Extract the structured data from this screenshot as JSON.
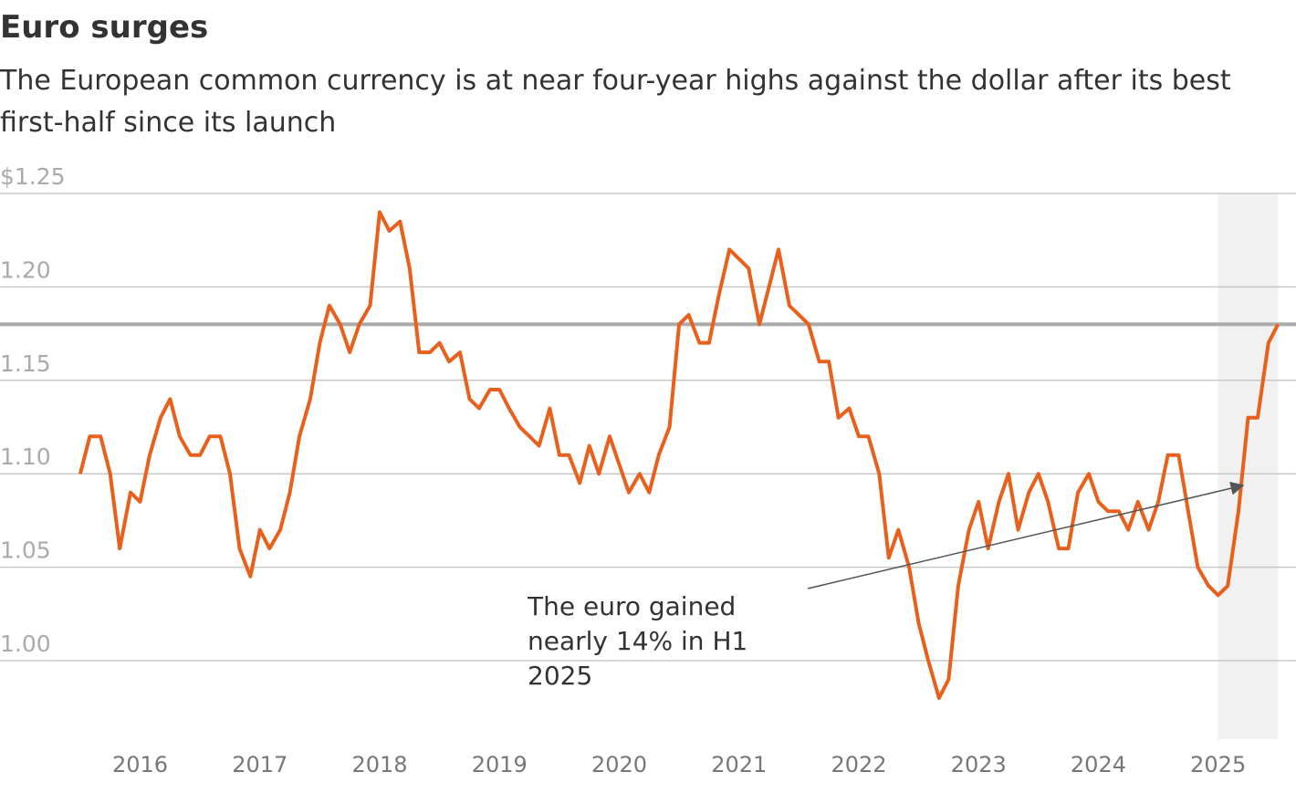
{
  "chart_data": {
    "type": "line",
    "title": "Euro surges",
    "subtitle": "The European common currency is at near four-year highs against the dollar after its best first-half since its launch",
    "annotation": "The euro gained nearly 14% in H1 2025",
    "reference_line": 1.18,
    "highlight": [
      2025.0,
      2025.5
    ],
    "xlim": [
      2014.83,
      2025.65
    ],
    "ylim": [
      0.958,
      1.25
    ],
    "xticks": [
      2016,
      2017,
      2018,
      2019,
      2020,
      2021,
      2022,
      2023,
      2024,
      2025
    ],
    "yticks": [
      {
        "value": 1.0,
        "label": "1.00"
      },
      {
        "value": 1.05,
        "label": "1.05"
      },
      {
        "value": 1.1,
        "label": "1.10"
      },
      {
        "value": 1.15,
        "label": "1.15"
      },
      {
        "value": 1.2,
        "label": "1.20"
      },
      {
        "value": 1.25,
        "label": "$1.25"
      }
    ],
    "grid": true,
    "x": [
      2015.5,
      2015.58,
      2015.67,
      2015.75,
      2015.83,
      2015.92,
      2016,
      2016.08,
      2016.17,
      2016.25,
      2016.33,
      2016.42,
      2016.5,
      2016.58,
      2016.67,
      2016.75,
      2016.83,
      2016.92,
      2017,
      2017.08,
      2017.17,
      2017.25,
      2017.33,
      2017.42,
      2017.5,
      2017.58,
      2017.67,
      2017.75,
      2017.83,
      2017.92,
      2018,
      2018.08,
      2018.17,
      2018.25,
      2018.33,
      2018.42,
      2018.5,
      2018.58,
      2018.67,
      2018.75,
      2018.83,
      2018.92,
      2019,
      2019.08,
      2019.17,
      2019.25,
      2019.33,
      2019.42,
      2019.5,
      2019.58,
      2019.67,
      2019.75,
      2019.83,
      2019.92,
      2020,
      2020.08,
      2020.17,
      2020.25,
      2020.33,
      2020.42,
      2020.5,
      2020.58,
      2020.67,
      2020.75,
      2020.83,
      2020.92,
      2021,
      2021.08,
      2021.17,
      2021.25,
      2021.33,
      2021.42,
      2021.5,
      2021.58,
      2021.67,
      2021.75,
      2021.83,
      2021.92,
      2022,
      2022.08,
      2022.17,
      2022.25,
      2022.33,
      2022.42,
      2022.5,
      2022.58,
      2022.67,
      2022.75,
      2022.83,
      2022.92,
      2023,
      2023.08,
      2023.17,
      2023.25,
      2023.33,
      2023.42,
      2023.5,
      2023.58,
      2023.67,
      2023.75,
      2023.83,
      2023.92,
      2024,
      2024.08,
      2024.17,
      2024.25,
      2024.33,
      2024.42,
      2024.5,
      2024.58,
      2024.67,
      2024.75,
      2024.83,
      2024.92,
      2025,
      2025.08,
      2025.17,
      2025.25,
      2025.33,
      2025.42,
      2025.5
    ],
    "series": [
      {
        "color": "#e8601c",
        "values": [
          1.1,
          1.12,
          1.12,
          1.1,
          1.06,
          1.09,
          1.085,
          1.11,
          1.13,
          1.14,
          1.12,
          1.11,
          1.11,
          1.12,
          1.12,
          1.1,
          1.06,
          1.045,
          1.07,
          1.06,
          1.07,
          1.09,
          1.12,
          1.14,
          1.17,
          1.19,
          1.18,
          1.165,
          1.18,
          1.19,
          1.24,
          1.23,
          1.235,
          1.21,
          1.165,
          1.165,
          1.17,
          1.16,
          1.165,
          1.14,
          1.135,
          1.145,
          1.145,
          1.135,
          1.125,
          1.12,
          1.115,
          1.135,
          1.11,
          1.11,
          1.095,
          1.115,
          1.1,
          1.12,
          1.105,
          1.09,
          1.1,
          1.09,
          1.11,
          1.125,
          1.18,
          1.185,
          1.17,
          1.17,
          1.195,
          1.22,
          1.215,
          1.21,
          1.18,
          1.2,
          1.22,
          1.19,
          1.185,
          1.18,
          1.16,
          1.16,
          1.13,
          1.135,
          1.12,
          1.12,
          1.1,
          1.055,
          1.07,
          1.05,
          1.02,
          1.0,
          0.98,
          0.99,
          1.04,
          1.07,
          1.085,
          1.06,
          1.085,
          1.1,
          1.07,
          1.09,
          1.1,
          1.085,
          1.06,
          1.06,
          1.09,
          1.1,
          1.085,
          1.08,
          1.08,
          1.07,
          1.085,
          1.07,
          1.085,
          1.11,
          1.11,
          1.08,
          1.05,
          1.04,
          1.035,
          1.04,
          1.08,
          1.13,
          1.13,
          1.17,
          1.18
        ]
      }
    ]
  }
}
